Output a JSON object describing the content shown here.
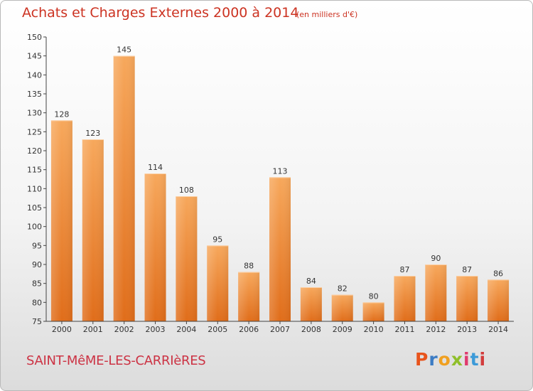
{
  "chart_data": {
    "type": "bar",
    "title": "Achats et Charges Externes 2000 à 2014",
    "subtitle": "(en milliers d'€)",
    "categories": [
      "2000",
      "2001",
      "2002",
      "2003",
      "2004",
      "2005",
      "2006",
      "2007",
      "2008",
      "2009",
      "2010",
      "2011",
      "2012",
      "2013",
      "2014"
    ],
    "values": [
      128,
      123,
      145,
      114,
      108,
      95,
      88,
      113,
      84,
      82,
      80,
      87,
      90,
      87,
      86
    ],
    "xlabel": "",
    "ylabel": "",
    "ylim": [
      75,
      150
    ],
    "yticks": [
      75,
      80,
      85,
      90,
      95,
      100,
      105,
      110,
      115,
      120,
      125,
      130,
      135,
      140,
      145,
      150
    ],
    "grid": false,
    "bar_color": "#f0883a"
  },
  "footer": {
    "city": "SAINT-MêME-LES-CARRIèRES",
    "logo": "Proxiti",
    "logo_colors": [
      "#e8541c",
      "#3c7cc4",
      "#f0a020",
      "#8fbf2a",
      "#e03a6e",
      "#3c9ad8",
      "#d23c3c"
    ]
  }
}
